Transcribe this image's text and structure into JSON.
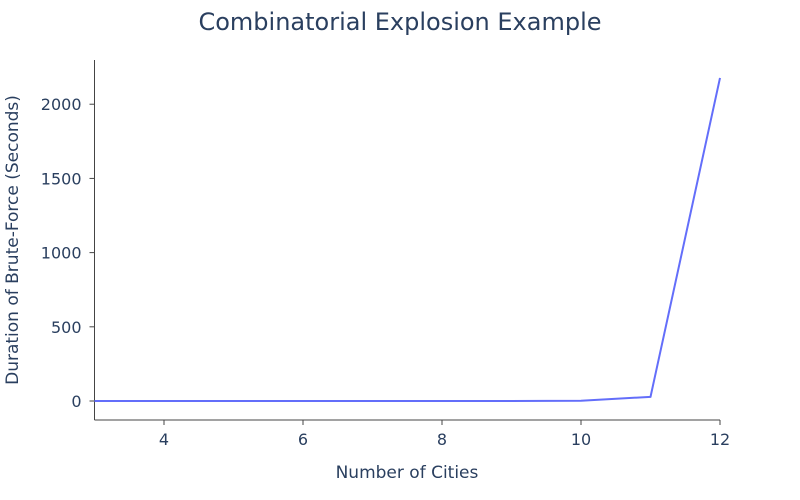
{
  "chart_data": {
    "type": "line",
    "title": "Combinatorial Explosion Example",
    "xlabel": "Number of Cities",
    "ylabel": "Duration of Brute-Force (Seconds)",
    "x": [
      3,
      4,
      5,
      6,
      7,
      8,
      9,
      10,
      11,
      12
    ],
    "y": [
      0,
      0,
      0,
      0,
      0,
      0.02,
      0.2,
      2,
      28,
      2177
    ],
    "xlim": [
      3,
      12
    ],
    "ylim": [
      -128,
      2298
    ],
    "xticks": [
      4,
      6,
      8,
      10,
      12
    ],
    "yticks": [
      0,
      500,
      1000,
      1500,
      2000
    ],
    "grid": false,
    "line_color": "#636efa"
  }
}
